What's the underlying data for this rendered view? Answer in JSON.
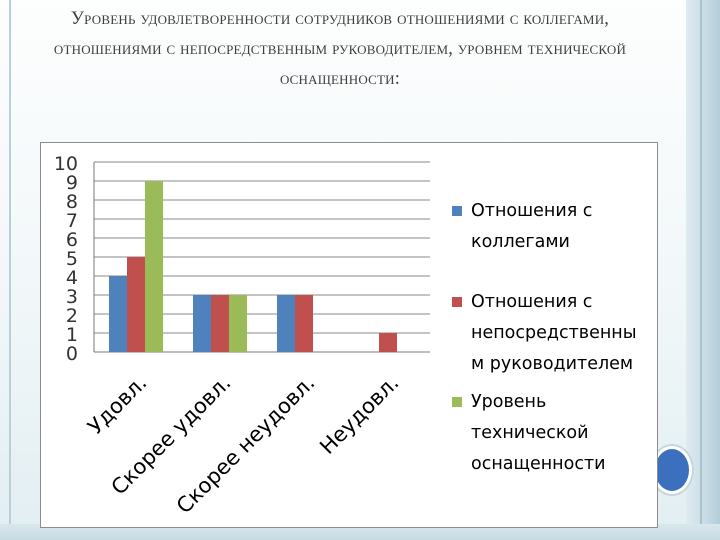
{
  "slide": {
    "title": "Уровень удовлетворенности сотрудников отношениями с коллегами, отношениями с непосредственным руководителем, уровнем технической оснащенности:"
  },
  "colors": {
    "series_1": "#4f81bd",
    "series_2": "#c0504d",
    "series_3": "#9bbb59",
    "accent_circle": "#3c6fbd"
  },
  "chart_data": {
    "type": "bar",
    "categories": [
      "Удовл.",
      "Скорее удовл.",
      "Скорее неудовл.",
      "Неудовл."
    ],
    "series": [
      {
        "name": "Отношения с коллегами",
        "values": [
          4,
          3,
          3,
          0
        ]
      },
      {
        "name": "Отношения с непосредственным руководителем",
        "values": [
          5,
          3,
          3,
          1
        ]
      },
      {
        "name": "Уровень технической оснащенности",
        "values": [
          9,
          3,
          0,
          0
        ]
      }
    ],
    "y_ticks": [
      "0",
      "1",
      "2",
      "3",
      "4",
      "5",
      "6",
      "7",
      "8",
      "9",
      "10"
    ],
    "ylim": [
      0,
      10
    ],
    "grid": true,
    "legend_position": "right"
  },
  "legend": {
    "items": [
      {
        "lines": [
          "Отношения с",
          "коллегами"
        ]
      },
      {
        "lines": [
          "Отношения с",
          "непосредственны",
          "м руководителем"
        ]
      },
      {
        "lines": [
          "Уровень",
          "технической",
          "оснащенности"
        ]
      }
    ]
  }
}
